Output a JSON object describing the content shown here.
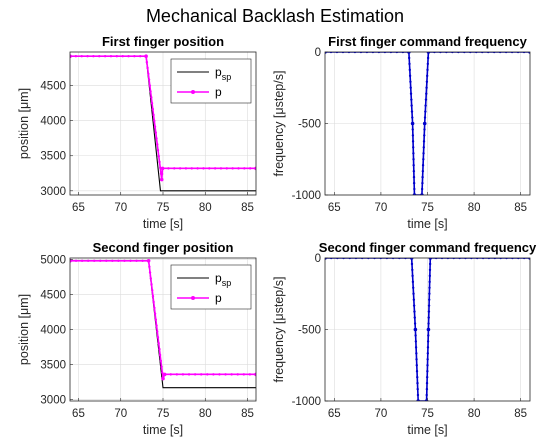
{
  "figure": {
    "title": "Mechanical Backlash Estimation"
  },
  "chart_data": [
    {
      "type": "line",
      "title": "First finger position",
      "xlabel": "time [s]",
      "ylabel": "position [μm]",
      "xlim": [
        64,
        86
      ],
      "ylim": [
        2940,
        4980
      ],
      "xticks": [
        65,
        70,
        75,
        80,
        85
      ],
      "yticks": [
        3000,
        3500,
        4000,
        4500
      ],
      "grid": true,
      "legend": {
        "position": "top-right",
        "entries": [
          {
            "base": "p",
            "sub": "sp",
            "color": "#000000",
            "marker": false
          },
          {
            "base": "p",
            "sub": "",
            "color": "#ff00ff",
            "marker": true
          }
        ]
      },
      "series": [
        {
          "name": "p_sp",
          "color": "#000000",
          "marker": false,
          "x": [
            64,
            73.0,
            74.7,
            74.8,
            86
          ],
          "y": [
            4920,
            4920,
            3000,
            3000,
            3000
          ]
        },
        {
          "name": "p",
          "color": "#ff00ff",
          "marker": true,
          "x": [
            64,
            73.0,
            74.85,
            74.95,
            86
          ],
          "y": [
            4920,
            4920,
            3160,
            3320,
            3320
          ]
        }
      ]
    },
    {
      "type": "line",
      "title": "First finger command frequency",
      "xlabel": "time [s]",
      "ylabel": "frequency [μstep/s]",
      "xlim": [
        64,
        86
      ],
      "ylim": [
        -1000,
        0
      ],
      "xticks": [
        65,
        70,
        75,
        80,
        85
      ],
      "yticks": [
        0,
        -500,
        -1000
      ],
      "grid": true,
      "series": [
        {
          "name": "",
          "color": "#0000cc",
          "marker": true,
          "x": [
            64,
            73.0,
            73.4,
            73.6,
            74.4,
            74.7,
            75.1,
            86
          ],
          "y": [
            0,
            0,
            -500,
            -1000,
            -1000,
            -500,
            0,
            0
          ]
        }
      ]
    },
    {
      "type": "line",
      "title": "Second finger position",
      "xlabel": "time [s]",
      "ylabel": "position [μm]",
      "xlim": [
        64,
        86
      ],
      "ylim": [
        2980,
        5020
      ],
      "xticks": [
        65,
        70,
        75,
        80,
        85
      ],
      "yticks": [
        3000,
        3500,
        4000,
        4500,
        5000
      ],
      "grid": true,
      "legend": {
        "position": "top-right",
        "entries": [
          {
            "base": "p",
            "sub": "sp",
            "color": "#000000",
            "marker": false
          },
          {
            "base": "p",
            "sub": "",
            "color": "#ff00ff",
            "marker": true
          }
        ]
      },
      "series": [
        {
          "name": "p_sp",
          "color": "#000000",
          "marker": false,
          "x": [
            64,
            73.3,
            75.0,
            75.1,
            86
          ],
          "y": [
            4980,
            4980,
            3170,
            3170,
            3170
          ]
        },
        {
          "name": "p",
          "color": "#ff00ff",
          "marker": true,
          "x": [
            64,
            73.3,
            75.0,
            75.2,
            86
          ],
          "y": [
            4980,
            4980,
            3300,
            3360,
            3360
          ]
        }
      ]
    },
    {
      "type": "line",
      "title": "Second finger command frequency",
      "xlabel": "time [s]",
      "ylabel": "frequency [μstep/s]",
      "xlim": [
        64,
        86
      ],
      "ylim": [
        -1000,
        0
      ],
      "xticks": [
        65,
        70,
        75,
        80,
        85
      ],
      "yticks": [
        0,
        -500,
        -1000
      ],
      "grid": true,
      "series": [
        {
          "name": "",
          "color": "#0000cc",
          "marker": true,
          "x": [
            64,
            73.3,
            73.7,
            74.0,
            74.9,
            75.1,
            75.3,
            86
          ],
          "y": [
            0,
            0,
            -500,
            -1000,
            -1000,
            -500,
            0,
            0
          ]
        }
      ]
    }
  ]
}
